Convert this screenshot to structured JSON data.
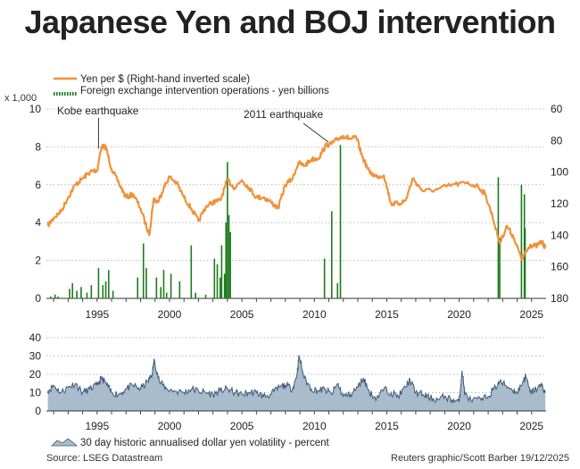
{
  "title": "Japanese Yen and BOJ intervention",
  "source": "Source: LSEG Datastream",
  "credit": "Reuters graphic/Scott Barber 19/12/2025",
  "colors": {
    "yen": "#f0923a",
    "intervention": "#1d7a1d",
    "volatility_fill": "#a9bccc",
    "volatility_line": "#3d5a78",
    "grid": "#bbbbbb",
    "annotation": "#333333"
  },
  "chart_data": [
    {
      "type": "line",
      "legend_placement": "top-left",
      "left_axis_unit": "x 1,000",
      "yleft_range": [
        0,
        10
      ],
      "yleft_ticks": [
        "0",
        "2",
        "4",
        "6",
        "8",
        "10"
      ],
      "yright_range": [
        180,
        60
      ],
      "yright_ticks": [
        "60",
        "80",
        "100",
        "120",
        "140",
        "160",
        "180"
      ],
      "yright_inverted": true,
      "x_range": [
        1991.5,
        2026.0
      ],
      "x_ticks": [
        "1995",
        "2000",
        "2005",
        "2010",
        "2015",
        "2020",
        "2025"
      ],
      "grid": "horizontal dotted",
      "series": [
        {
          "name": "Yen per $ (Right-hand inverted scale)",
          "axis": "right",
          "x": [
            1991.6,
            1992.0,
            1992.5,
            1993.0,
            1993.5,
            1994.0,
            1994.5,
            1994.8,
            1995.0,
            1995.3,
            1995.6,
            1996.0,
            1996.5,
            1997.0,
            1997.5,
            1998.0,
            1998.6,
            1998.9,
            1999.2,
            1999.6,
            2000.0,
            2000.5,
            2001.0,
            2001.5,
            2002.0,
            2002.5,
            2003.0,
            2003.5,
            2004.0,
            2004.5,
            2005.0,
            2005.5,
            2006.0,
            2006.5,
            2007.0,
            2007.5,
            2008.0,
            2008.5,
            2008.9,
            2009.3,
            2009.8,
            2010.3,
            2010.8,
            2011.2,
            2011.6,
            2012.0,
            2012.5,
            2012.9,
            2013.3,
            2013.8,
            2014.3,
            2014.8,
            2015.3,
            2015.8,
            2016.3,
            2016.8,
            2017.5,
            2018.5,
            2019.5,
            2020.5,
            2021.3,
            2021.8,
            2022.3,
            2022.8,
            2023.3,
            2023.8,
            2024.3,
            2024.6,
            2024.9,
            2025.3,
            2025.7,
            2025.95
          ],
          "values": [
            134,
            129,
            125,
            116,
            108,
            104,
            100,
            99,
            99,
            84,
            84,
            98,
            107,
            116,
            114,
            123,
            140,
            117,
            119,
            110,
            103,
            107,
            116,
            123,
            131,
            122,
            119,
            118,
            105,
            110,
            105,
            110,
            116,
            116,
            119,
            123,
            108,
            104,
            94,
            96,
            92,
            91,
            83,
            82,
            79,
            77,
            79,
            78,
            90,
            100,
            103,
            102,
            120,
            120,
            118,
            104,
            112,
            111,
            108,
            107,
            109,
            114,
            128,
            145,
            134,
            142,
            155,
            151,
            146,
            147,
            144,
            148
          ]
        },
        {
          "name": "Foreign exchange intervention operations - yen billions",
          "axis": "left",
          "type": "bar",
          "x": [
            1991.8,
            1992.1,
            1992.3,
            1993.1,
            1993.3,
            1993.6,
            1993.9,
            1994.3,
            1994.6,
            1995.1,
            1995.4,
            1995.6,
            1995.8,
            1996.1,
            1997.8,
            1998.2,
            1998.4,
            1999.1,
            1999.4,
            1999.6,
            1999.8,
            2000.1,
            2000.7,
            2001.5,
            2001.8,
            2002.5,
            2003.1,
            2003.3,
            2003.5,
            2003.6,
            2003.8,
            2003.9,
            2004.0,
            2004.1,
            2004.2,
            2010.7,
            2011.2,
            2011.6,
            2011.8,
            2022.7,
            2022.8,
            2024.3,
            2024.5,
            2024.55
          ],
          "values": [
            0.1,
            0.2,
            0.1,
            0.5,
            0.8,
            0.4,
            0.6,
            0.3,
            0.7,
            1.6,
            0.7,
            0.9,
            1.5,
            0.4,
            1.1,
            2.9,
            1.6,
            1.1,
            0.6,
            1.5,
            0.3,
            1.3,
            0.9,
            2.8,
            0.3,
            0.2,
            2.1,
            1.8,
            1.1,
            2.8,
            1.3,
            4.0,
            7.2,
            4.4,
            3.5,
            2.1,
            4.6,
            0.8,
            8.1,
            6.4,
            3.2,
            6.0,
            5.5,
            3.7
          ]
        }
      ],
      "annotations": [
        {
          "text": "Kobe earthquake",
          "x": 1995.1,
          "axis": "right",
          "y": 84
        },
        {
          "text": "2011 earthquake",
          "x": 2011.2,
          "axis": "right",
          "y": 82
        }
      ]
    },
    {
      "type": "area",
      "legend_placement": "bottom-left",
      "y_range": [
        0,
        40
      ],
      "y_ticks": [
        "0",
        "10",
        "20",
        "30",
        "40"
      ],
      "x_range": [
        1991.5,
        2026.0
      ],
      "x_ticks": [
        "1995",
        "2000",
        "2005",
        "2010",
        "2015",
        "2020",
        "2025"
      ],
      "grid": "horizontal dotted",
      "series": [
        {
          "name": "30 day historic annualised dollar yen volatility - percent",
          "x": [
            1991.6,
            1992.0,
            1992.5,
            1993.0,
            1993.5,
            1994.0,
            1994.5,
            1995.0,
            1995.3,
            1995.6,
            1996.0,
            1996.5,
            1997.0,
            1997.5,
            1998.0,
            1998.5,
            1998.8,
            1998.95,
            1999.3,
            1999.8,
            2000.3,
            2001.0,
            2001.5,
            2002.0,
            2002.5,
            2003.0,
            2003.5,
            2004.0,
            2004.5,
            2005.0,
            2005.5,
            2006.0,
            2006.5,
            2007.0,
            2007.6,
            2008.0,
            2008.5,
            2008.8,
            2008.95,
            2009.3,
            2009.8,
            2010.3,
            2010.7,
            2011.2,
            2011.6,
            2012.0,
            2012.5,
            2013.0,
            2013.4,
            2013.8,
            2014.3,
            2014.8,
            2015.3,
            2015.8,
            2016.3,
            2016.6,
            2017.0,
            2017.5,
            2018.0,
            2018.5,
            2019.0,
            2019.5,
            2020.0,
            2020.2,
            2020.4,
            2020.8,
            2021.5,
            2022.0,
            2022.4,
            2022.8,
            2023.2,
            2023.6,
            2024.0,
            2024.4,
            2024.6,
            2024.9,
            2025.3,
            2025.7,
            2025.95
          ],
          "values": [
            11,
            14,
            10,
            13,
            15,
            10,
            12,
            14,
            18,
            15,
            10,
            9,
            12,
            14,
            12,
            16,
            20,
            28,
            16,
            12,
            11,
            10,
            12,
            11,
            10,
            9,
            11,
            12,
            10,
            9,
            10,
            10,
            8,
            9,
            13,
            14,
            12,
            20,
            30,
            18,
            12,
            11,
            12,
            9,
            15,
            8,
            9,
            13,
            18,
            10,
            7,
            12,
            10,
            8,
            13,
            17,
            10,
            9,
            7,
            6,
            8,
            6,
            5,
            22,
            9,
            6,
            6,
            8,
            12,
            16,
            14,
            12,
            10,
            16,
            19,
            10,
            12,
            14,
            10
          ]
        }
      ]
    }
  ]
}
